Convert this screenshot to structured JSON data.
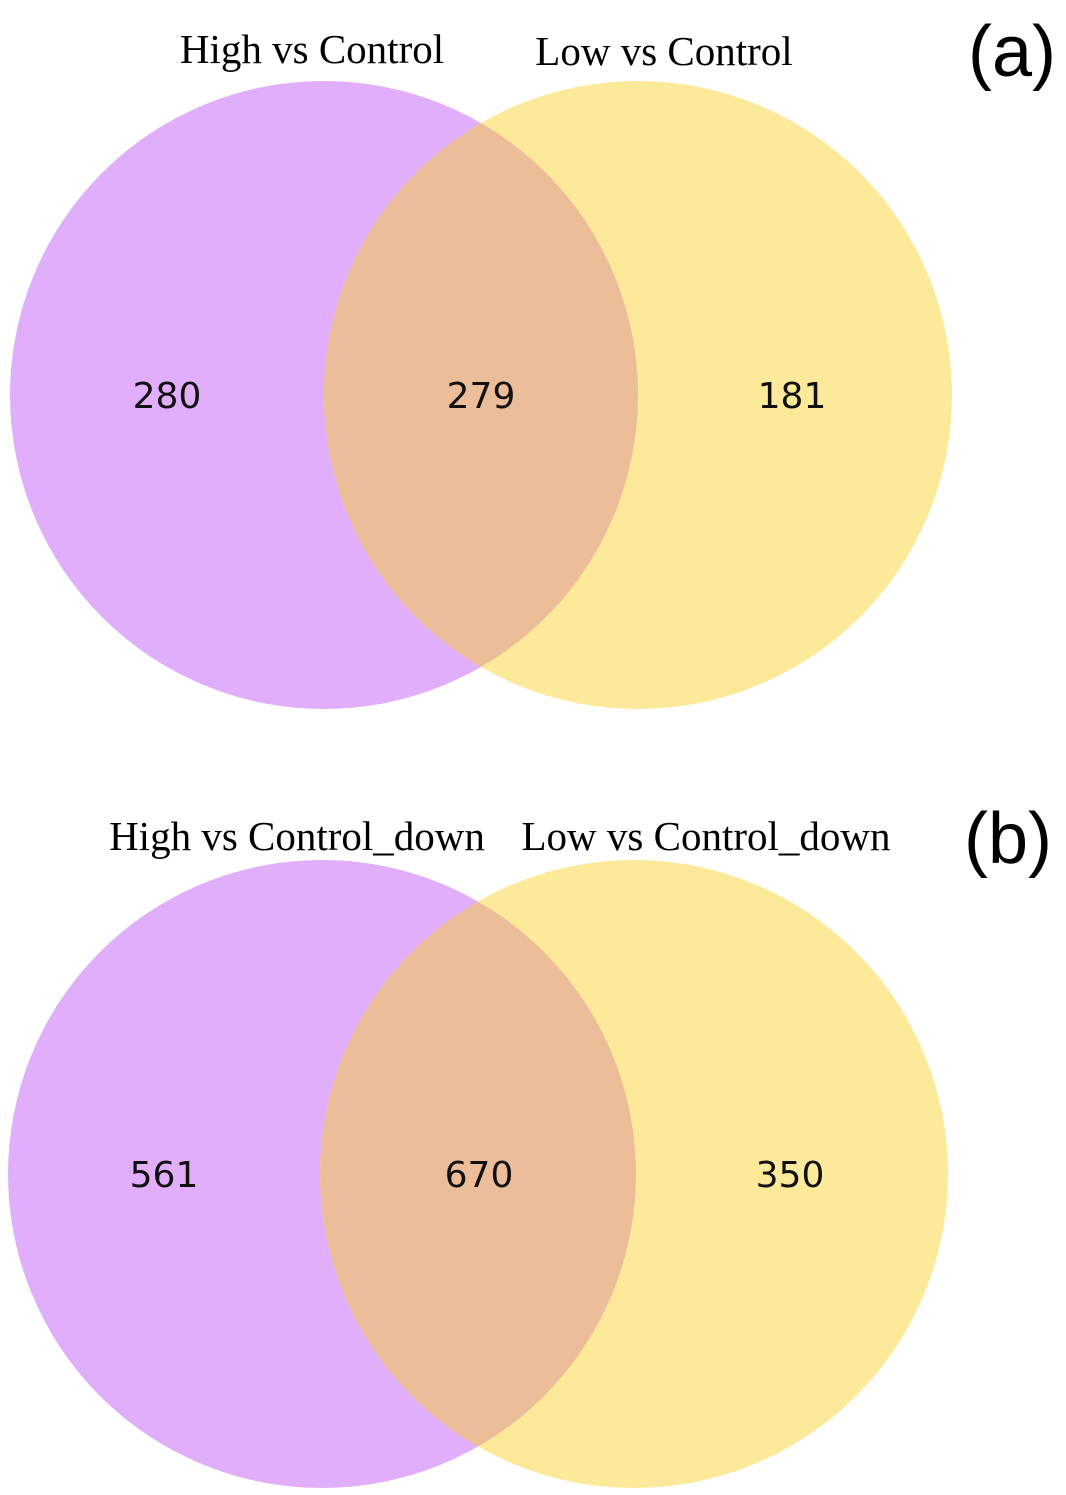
{
  "colors": {
    "left_set": "#e0aefa",
    "right_set": "#fde99a",
    "overlap": "#ecbd99"
  },
  "panels": [
    {
      "panel_label": "(a)",
      "left_set": {
        "name": "High vs Control",
        "only_count": "280"
      },
      "right_set": {
        "name": "Low vs Control",
        "only_count": "181"
      },
      "overlap_count": "279"
    },
    {
      "panel_label": "(b)",
      "left_set": {
        "name": "High vs Control_down",
        "only_count": "561"
      },
      "right_set": {
        "name": "Low vs Control_down",
        "only_count": "350"
      },
      "overlap_count": "670"
    }
  ]
}
